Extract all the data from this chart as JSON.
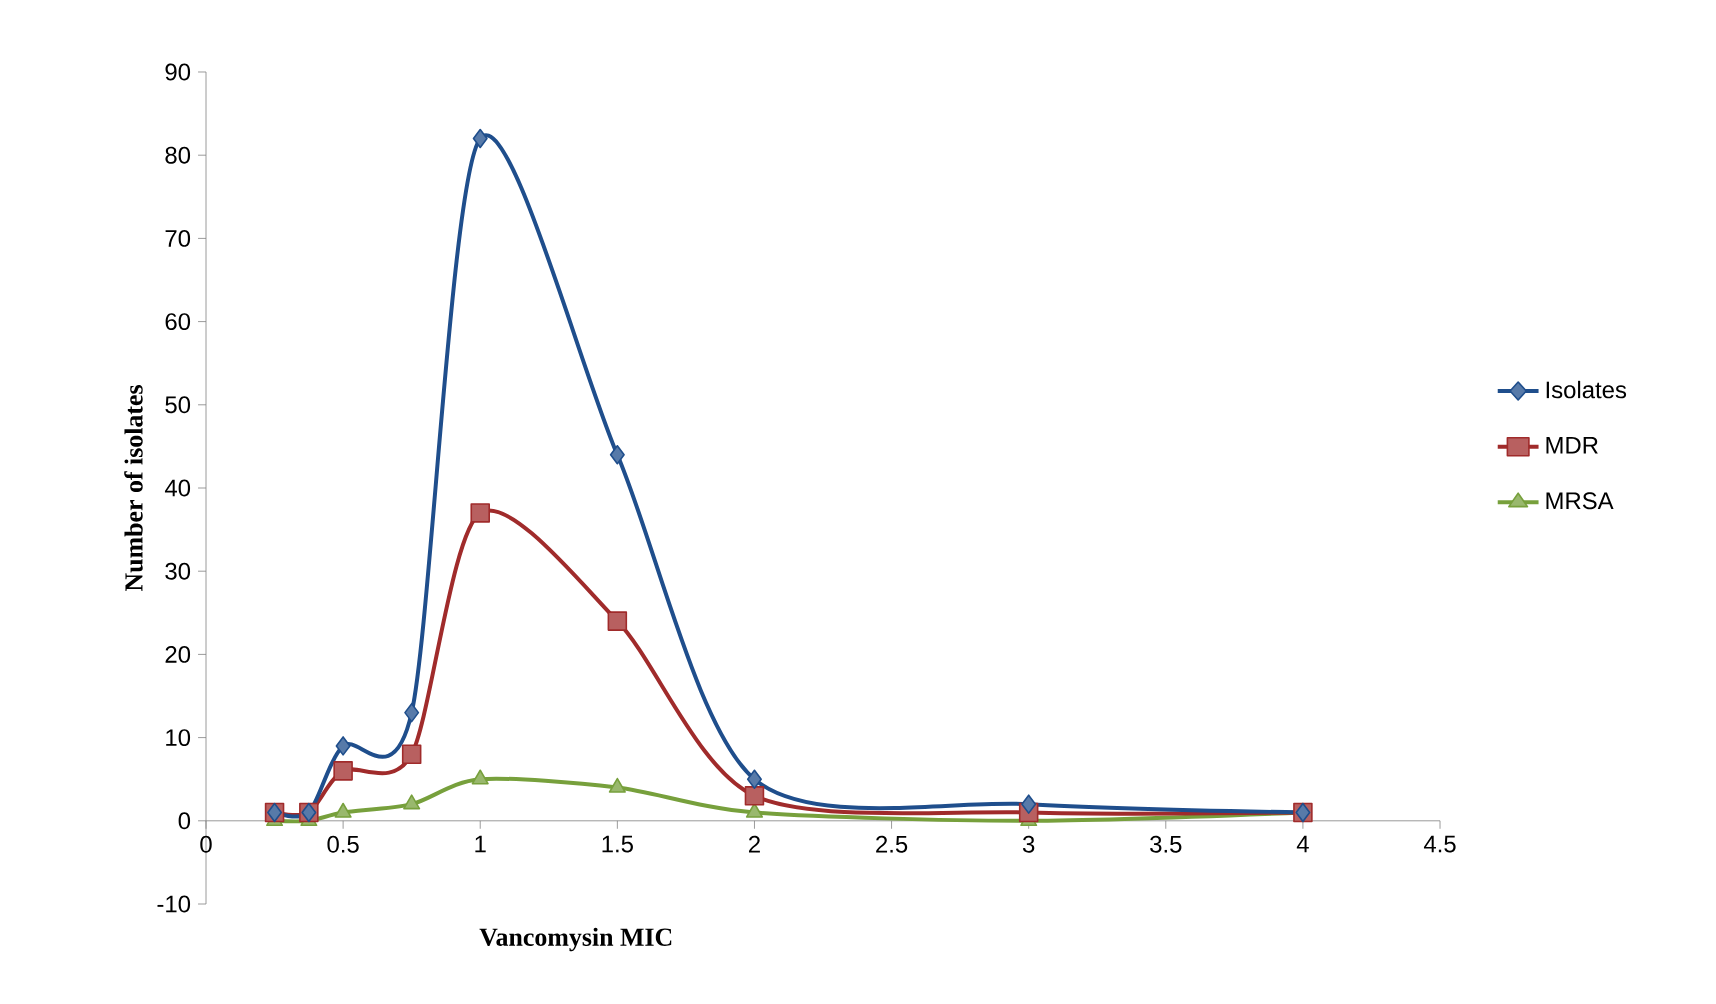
{
  "chart_data": {
    "type": "line",
    "xlabel": "Vancomysin MIC",
    "ylabel": "Number of isolates",
    "x": [
      0.25,
      0.375,
      0.5,
      0.75,
      1,
      1.5,
      2,
      3,
      4
    ],
    "series": [
      {
        "name": "Isolates",
        "color": "#1f4e8c",
        "marker": "diamond",
        "values": [
          1,
          1,
          9,
          13,
          82,
          44,
          5,
          2,
          1
        ]
      },
      {
        "name": "MDR",
        "color": "#a02b2b",
        "marker": "square",
        "values": [
          1,
          1,
          6,
          8,
          37,
          24,
          3,
          1,
          1
        ]
      },
      {
        "name": "MRSA",
        "color": "#77a03c",
        "marker": "triangle",
        "values": [
          0,
          0,
          1,
          2,
          5,
          4,
          1,
          0,
          1
        ]
      }
    ],
    "xlim": [
      0,
      4.5
    ],
    "xticks": [
      0,
      0.5,
      1,
      1.5,
      2,
      2.5,
      3,
      3.5,
      4,
      4.5
    ],
    "ylim": [
      -10,
      90
    ],
    "yticks": [
      -10,
      0,
      10,
      20,
      30,
      40,
      50,
      60,
      70,
      80,
      90
    ],
    "legend": "right",
    "line_style": "solid"
  }
}
